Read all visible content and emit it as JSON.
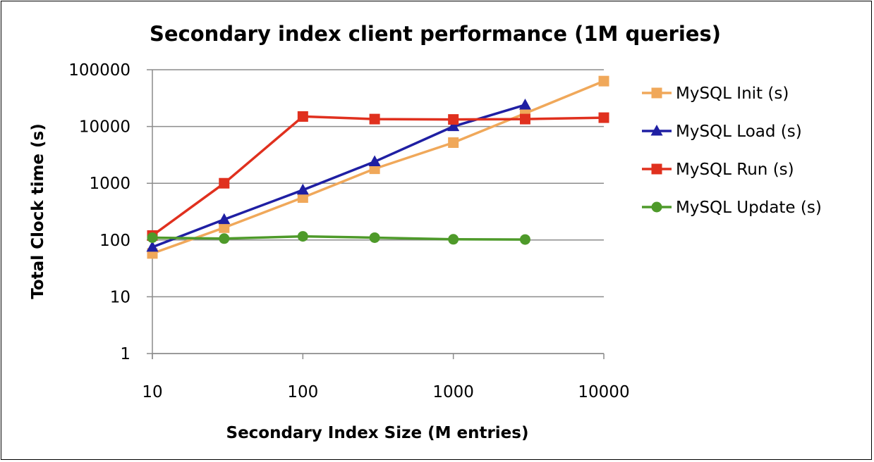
{
  "chart_data": {
    "type": "line",
    "title": "Secondary index client performance (1M queries)",
    "xlabel": "Secondary Index Size (M entries)",
    "ylabel": "Total Clock time (s)",
    "x_scale": "log",
    "y_scale": "log",
    "xlim": [
      10,
      10000
    ],
    "ylim": [
      1,
      100000
    ],
    "x_ticks": [
      "10",
      "100",
      "1000",
      "10000"
    ],
    "y_ticks": [
      "1",
      "10",
      "100",
      "1000",
      "10000",
      "100000"
    ],
    "grid": "horizontal",
    "legend_position": "right",
    "series": [
      {
        "name": "MySQL Init (s)",
        "color": "#F0A85A",
        "marker": "square",
        "x": [
          10,
          30,
          100,
          300,
          1000,
          3000,
          10000
        ],
        "values": [
          58,
          165,
          560,
          1800,
          5200,
          17000,
          63000
        ]
      },
      {
        "name": "MySQL Load (s)",
        "color": "#1F1FA3",
        "marker": "triangle",
        "x": [
          10,
          30,
          100,
          300,
          1000,
          3000
        ],
        "values": [
          75,
          230,
          760,
          2400,
          10000,
          24000
        ]
      },
      {
        "name": "MySQL Run (s)",
        "color": "#E0301E",
        "marker": "square",
        "x": [
          10,
          30,
          100,
          300,
          1000,
          3000,
          10000
        ],
        "values": [
          120,
          1000,
          15000,
          13500,
          13300,
          13500,
          14300
        ]
      },
      {
        "name": "MySQL Update (s)",
        "color": "#4E9A2A",
        "marker": "circle",
        "x": [
          10,
          30,
          100,
          300,
          1000,
          3000
        ],
        "values": [
          110,
          106,
          116,
          110,
          103,
          102
        ]
      }
    ]
  }
}
